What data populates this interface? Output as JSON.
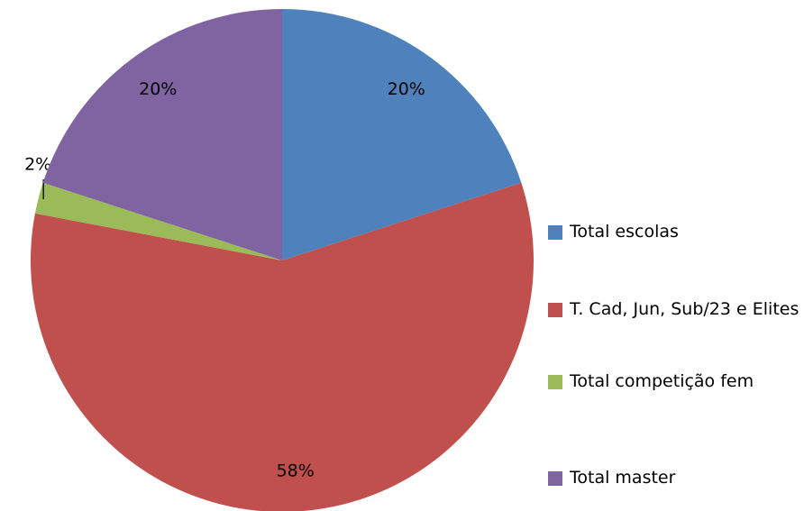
{
  "chart_data": {
    "type": "pie",
    "categories": [
      "Total escolas",
      "T. Cad, Jun, Sub/23 e Elites",
      "Total competição fem",
      "Total master"
    ],
    "values": [
      20,
      58,
      2,
      20
    ],
    "value_labels": [
      "20%",
      "58%",
      "2%",
      "20%"
    ],
    "colors": [
      "#4f81bd",
      "#c0504d",
      "#9bbb59",
      "#8064a2"
    ],
    "legend": "right"
  }
}
